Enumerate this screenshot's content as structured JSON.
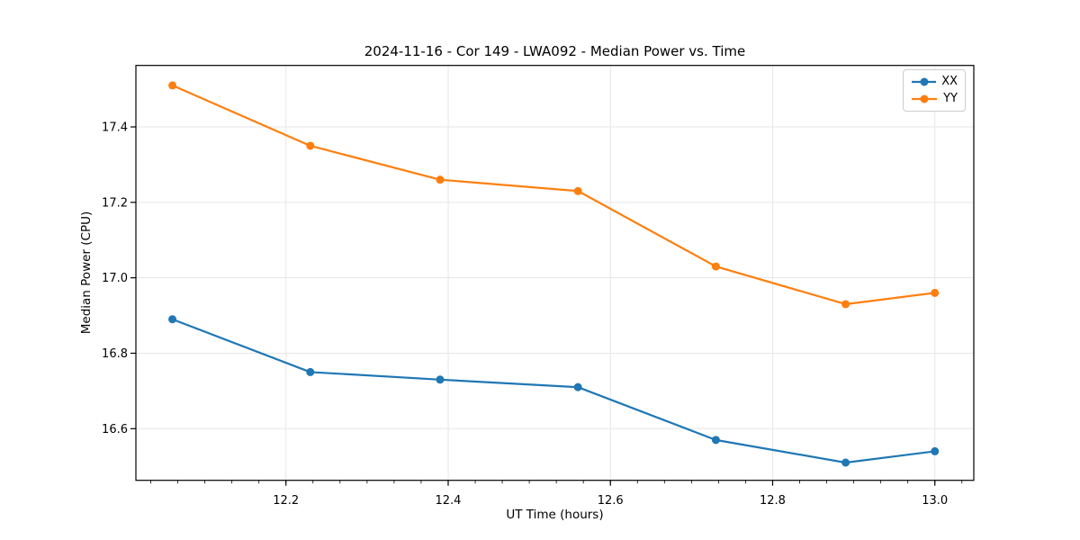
{
  "chart_data": {
    "type": "line",
    "title": "2024-11-16 - Cor 149 - LWA092 - Median Power vs. Time",
    "xlabel": "UT Time (hours)",
    "ylabel": "Median Power (CPU)",
    "x": [
      12.06,
      12.23,
      12.39,
      12.56,
      12.73,
      12.89,
      13.0
    ],
    "series": [
      {
        "name": "XX",
        "color": "#1f77b4",
        "values": [
          16.89,
          16.75,
          16.73,
          16.71,
          16.57,
          16.51,
          16.54
        ]
      },
      {
        "name": "YY",
        "color": "#ff7f0e",
        "values": [
          17.51,
          17.35,
          17.26,
          17.23,
          17.03,
          16.93,
          16.96
        ]
      }
    ],
    "xlim": [
      12.015,
      13.048
    ],
    "ylim": [
      16.463,
      17.563
    ],
    "xticks": {
      "values": [
        12.2,
        12.4,
        12.6,
        12.8,
        13.0
      ],
      "labels": [
        "12.2",
        "12.4",
        "12.6",
        "12.8",
        "13.0"
      ]
    },
    "yticks": {
      "values": [
        16.6,
        16.8,
        17.0,
        17.2,
        17.4
      ],
      "labels": [
        "16.6",
        "16.8",
        "17.0",
        "17.2",
        "17.4"
      ]
    },
    "x_minor_tick_step": 0.0333333,
    "grid": true,
    "grid_color": "#e6e6e6",
    "legend": {
      "position": "upper right",
      "entries": [
        "XX",
        "YY"
      ]
    }
  }
}
